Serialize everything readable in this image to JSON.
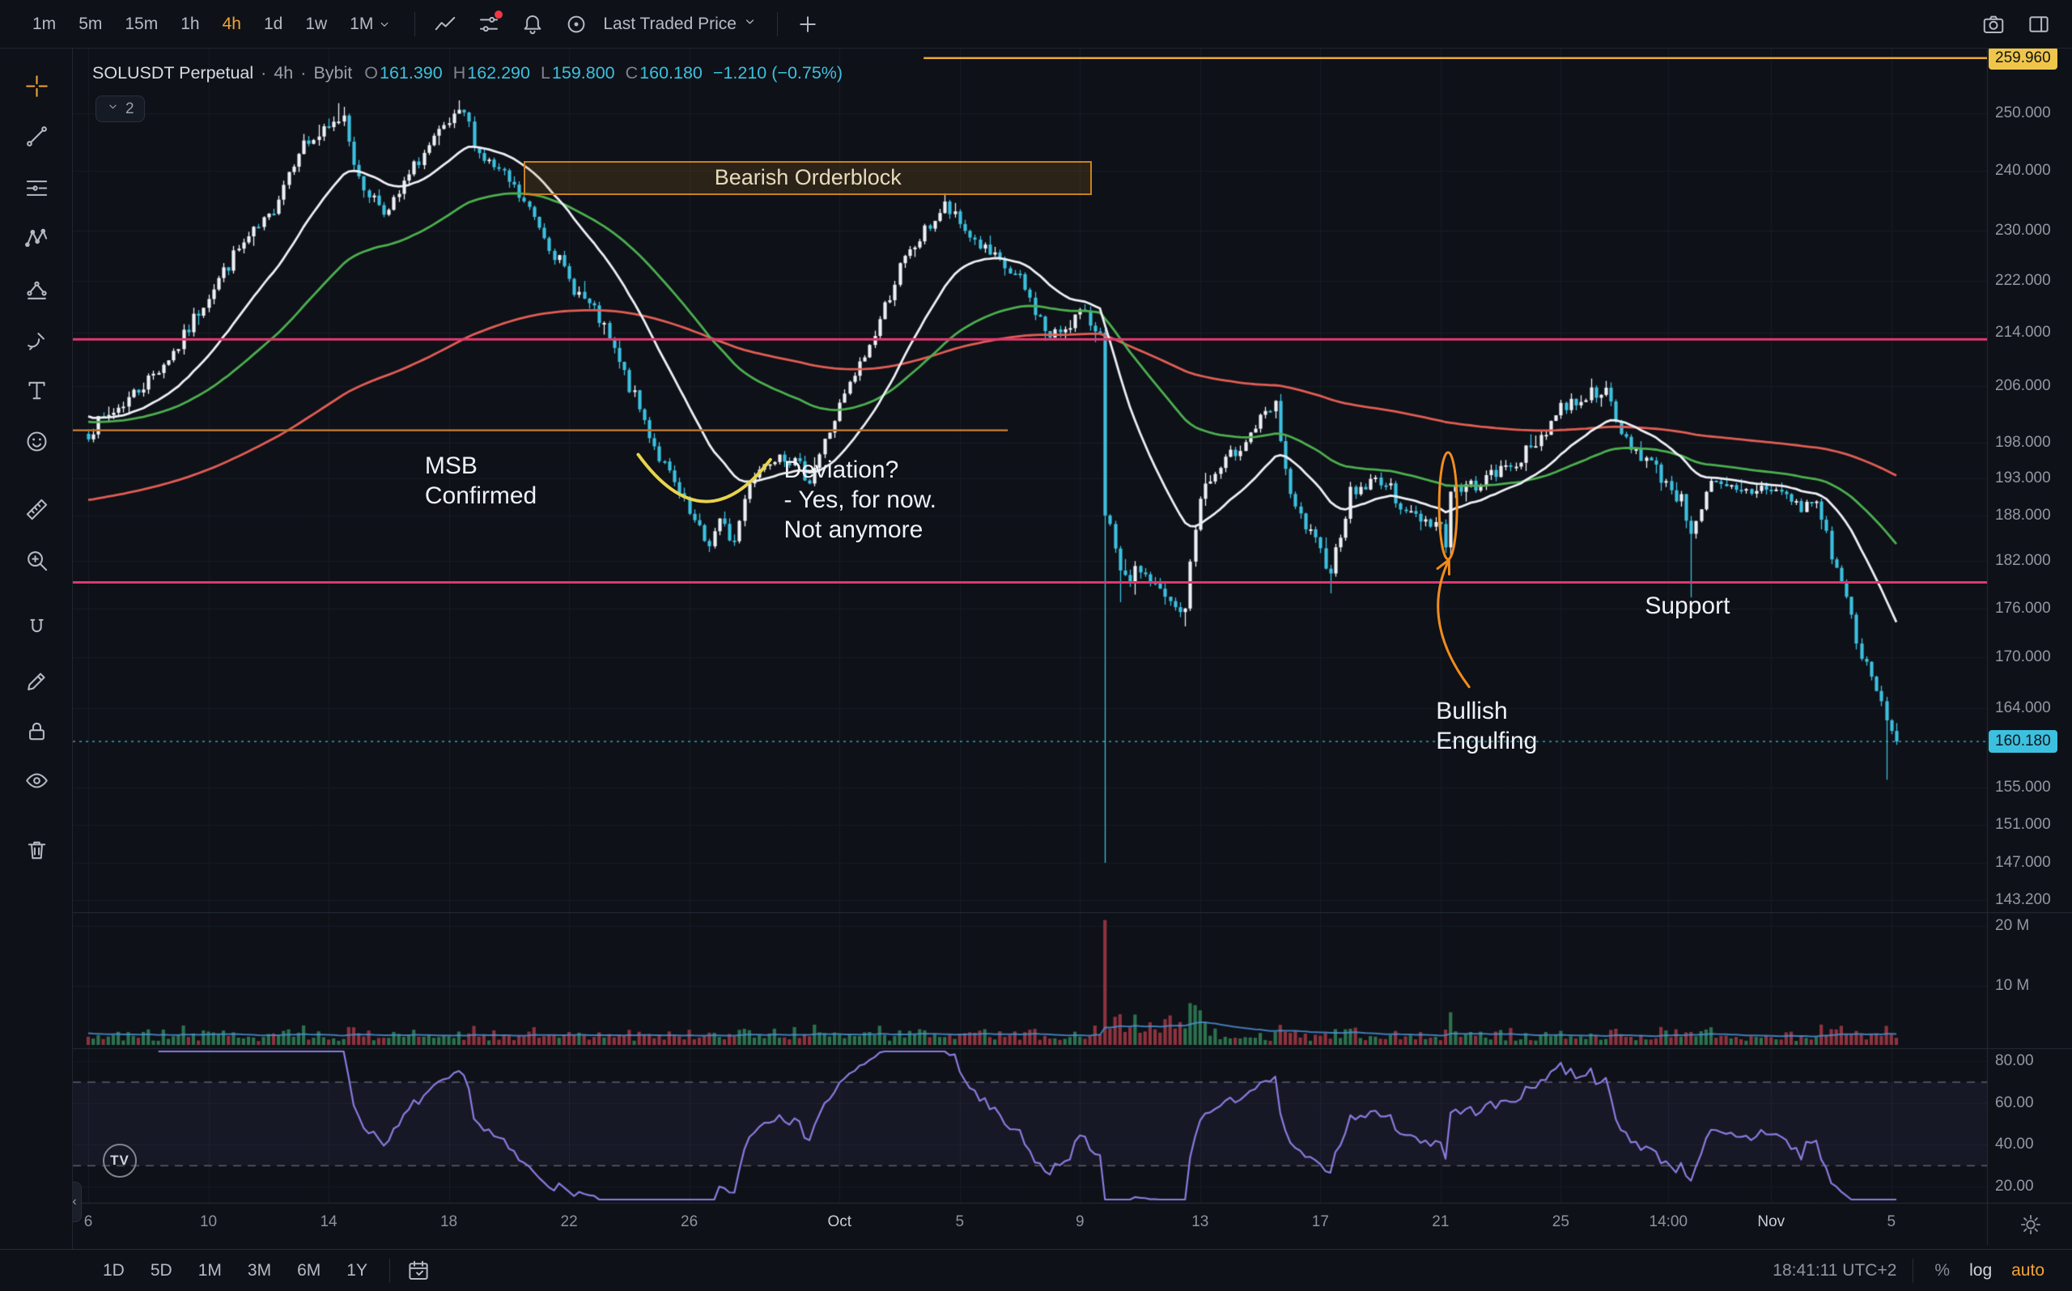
{
  "header": {
    "accent": "#f0a43a",
    "timeframes": [
      {
        "label": "1m"
      },
      {
        "label": "5m"
      },
      {
        "label": "15m"
      },
      {
        "label": "1h"
      },
      {
        "label": "4h",
        "active": true
      },
      {
        "label": "1d"
      },
      {
        "label": "1w"
      },
      {
        "label": "1M",
        "caret": true
      }
    ],
    "icons": [
      {
        "name": "chart-style-icon"
      },
      {
        "name": "indicators-icon",
        "badge": true
      },
      {
        "name": "alerts-icon"
      },
      {
        "name": "target-icon"
      }
    ],
    "price_source": "Last Traded Price",
    "add_icon": "plus-icon",
    "right_icons": [
      {
        "name": "camera-icon"
      },
      {
        "name": "layout-icon"
      }
    ]
  },
  "symbol_bar": {
    "symbol": "SOLUSDT Perpetual",
    "separator": "·",
    "interval": "4h",
    "exchange": "Bybit",
    "ohlc": [
      {
        "label": "O",
        "value": "161.390"
      },
      {
        "label": "H",
        "value": "162.290"
      },
      {
        "label": "L",
        "value": "159.800"
      },
      {
        "label": "C",
        "value": "160.180"
      }
    ],
    "change": "−1.210 (−0.75%)",
    "objects_count": "2",
    "objects_chip_icon": "chevron-down-icon"
  },
  "left_toolbar": {
    "tools": [
      {
        "icon": "crosshair-icon",
        "active": true
      },
      {
        "icon": "trend-line-icon"
      },
      {
        "icon": "horizontal-lines-icon"
      },
      {
        "icon": "xabcd-pattern-icon"
      },
      {
        "icon": "patterns-icon"
      },
      {
        "icon": "brush-icon"
      },
      {
        "icon": "text-icon"
      },
      {
        "icon": "emoji-icon"
      },
      {
        "icon": "ruler-icon"
      },
      {
        "icon": "zoom-icon"
      },
      {
        "icon": "magnet-icon"
      },
      {
        "icon": "edit-lock-icon"
      },
      {
        "icon": "lock-all-icon"
      },
      {
        "icon": "hide-all-icon"
      },
      {
        "icon": "trash-icon"
      }
    ]
  },
  "bottom_toolbar": {
    "ranges": [
      "1D",
      "5D",
      "1M",
      "3M",
      "6M",
      "1Y"
    ],
    "calendar_icon": "go-to-date-icon",
    "clock": "18:41:11 UTC+2",
    "percent_label": "%",
    "log_label": "log",
    "auto_label": "auto"
  },
  "chart_data": {
    "type": "candlestick",
    "symbol": "SOLUSDT Perpetual",
    "interval": "4h",
    "exchange": "Bybit",
    "scale": "log",
    "watermark_logo": "TV",
    "collapse_tab_icon": "chevron-left-icon",
    "ohlc_current": {
      "open": 161.39,
      "high": 162.29,
      "low": 159.8,
      "close": 160.18,
      "change": -1.21,
      "change_pct": -0.75
    },
    "price_axis": {
      "ticks": [
        250,
        240,
        230,
        222,
        214,
        206,
        198,
        193,
        188,
        182,
        176,
        170,
        164,
        155,
        151,
        147,
        143.2
      ],
      "top_badge": {
        "value": 259.96,
        "label": "259.960",
        "color": "#f0c64a"
      },
      "last_badge": {
        "value": 160.18,
        "label": "160.180"
      }
    },
    "time_axis": {
      "ticks": [
        {
          "t": 0,
          "label": "6"
        },
        {
          "t": 4,
          "label": "10"
        },
        {
          "t": 8,
          "label": "14"
        },
        {
          "t": 12,
          "label": "18"
        },
        {
          "t": 16,
          "label": "22"
        },
        {
          "t": 20,
          "label": "26"
        },
        {
          "t": 25,
          "label": "Oct",
          "major": true
        },
        {
          "t": 29,
          "label": "5"
        },
        {
          "t": 33,
          "label": "9"
        },
        {
          "t": 37,
          "label": "13"
        },
        {
          "t": 41,
          "label": "17"
        },
        {
          "t": 45,
          "label": "21"
        },
        {
          "t": 49,
          "label": "25"
        },
        {
          "t": 52.58,
          "label": "14:00"
        },
        {
          "t": 56,
          "label": "Nov",
          "major": true
        },
        {
          "t": 60,
          "label": "5"
        }
      ],
      "corner_icon": "pane-settings-icon"
    },
    "volume_axis": {
      "ticks": [
        {
          "v": 20,
          "label": "20 M"
        },
        {
          "v": 10,
          "label": "10 M"
        }
      ]
    },
    "rsi": {
      "ticks": [
        {
          "v": 80,
          "label": "80.00"
        },
        {
          "v": 60,
          "label": "60.00"
        },
        {
          "v": 40,
          "label": "40.00"
        },
        {
          "v": 20,
          "label": "20.00"
        }
      ],
      "upper": 70,
      "lower": 30
    },
    "close_waypoints": [
      [
        0,
        199.5
      ],
      [
        1,
        203
      ],
      [
        2,
        207
      ],
      [
        3,
        212
      ],
      [
        4,
        220
      ],
      [
        5,
        227
      ],
      [
        6,
        232
      ],
      [
        7,
        244
      ],
      [
        8,
        247
      ],
      [
        8.5,
        250
      ],
      [
        9,
        238
      ],
      [
        10,
        233
      ],
      [
        11,
        242
      ],
      [
        12,
        248
      ],
      [
        12.5,
        250
      ],
      [
        13,
        243
      ],
      [
        14,
        238
      ],
      [
        15,
        231
      ],
      [
        16,
        222
      ],
      [
        17,
        216
      ],
      [
        18,
        206
      ],
      [
        19,
        196
      ],
      [
        20,
        188
      ],
      [
        20.6,
        184
      ],
      [
        21,
        187
      ],
      [
        21.5,
        184.5
      ],
      [
        22,
        193
      ],
      [
        23,
        197
      ],
      [
        24,
        193
      ],
      [
        25,
        203
      ],
      [
        26,
        212
      ],
      [
        27,
        224
      ],
      [
        28,
        231
      ],
      [
        28.5,
        234
      ],
      [
        29,
        231
      ],
      [
        30,
        226
      ],
      [
        31,
        222
      ],
      [
        32,
        213
      ],
      [
        33,
        217
      ],
      [
        33.67,
        214
      ],
      [
        33.84,
        188
      ],
      [
        34,
        186
      ],
      [
        34.4,
        179
      ],
      [
        35,
        181
      ],
      [
        36,
        176.5
      ],
      [
        36.45,
        175
      ],
      [
        37,
        191
      ],
      [
        38,
        196
      ],
      [
        39,
        201
      ],
      [
        39.5,
        203
      ],
      [
        40,
        190
      ],
      [
        41,
        183
      ],
      [
        41.35,
        181
      ],
      [
        42,
        191
      ],
      [
        43,
        193
      ],
      [
        44,
        188
      ],
      [
        45,
        187
      ],
      [
        45.17,
        183.8
      ],
      [
        45.34,
        191.2
      ],
      [
        46,
        192
      ],
      [
        47,
        194
      ],
      [
        48,
        197
      ],
      [
        49,
        203
      ],
      [
        50,
        205
      ],
      [
        50.4,
        206
      ],
      [
        51,
        199
      ],
      [
        52,
        195
      ],
      [
        53,
        190
      ],
      [
        53.3,
        186
      ],
      [
        54,
        192
      ],
      [
        55,
        191
      ],
      [
        56,
        192
      ],
      [
        57,
        189
      ],
      [
        57.5,
        190
      ],
      [
        58,
        183
      ],
      [
        58.6,
        176
      ],
      [
        59,
        170
      ],
      [
        59.5,
        166
      ],
      [
        60,
        161.4
      ],
      [
        60.17,
        160.18
      ]
    ],
    "anomalies": [
      {
        "t": 8.4,
        "high": 251.8
      },
      {
        "t": 12.4,
        "high": 252.3
      },
      {
        "t": 20.6,
        "low": 183.2
      },
      {
        "t": 21.5,
        "low": 184.0
      },
      {
        "t": 28.5,
        "high": 236.2
      },
      {
        "t": 33.67,
        "close": 214.0
      },
      {
        "t": 33.84,
        "close": 188.0,
        "low": 147.0,
        "volume_m": 21
      },
      {
        "t": 34.4,
        "low": 176.8
      },
      {
        "t": 36.45,
        "low": 173.8
      },
      {
        "t": 41.35,
        "low": 177.9
      },
      {
        "t": 45.17,
        "close": 183.8
      },
      {
        "t": 45.34,
        "close": 191.2,
        "low": 182.5,
        "volume_m": 5.5
      },
      {
        "t": 53.3,
        "low": 177.4
      },
      {
        "t": 59.8,
        "low": 155.9
      },
      {
        "t": 60.0,
        "close": 161.39
      },
      {
        "t": 60.17,
        "open": 161.39,
        "high": 162.29,
        "low": 159.8,
        "close": 160.18
      }
    ],
    "levels": [
      {
        "name": "upper-range-line",
        "price": 259.96,
        "t1": 27.8,
        "t2": "end",
        "color": "#e8a83d",
        "width": 2.5
      },
      {
        "name": "resistance-line",
        "price": 213.0,
        "t1": "start",
        "t2": "end",
        "color": "#e0366e",
        "width": 3
      },
      {
        "name": "support-line",
        "price": 179.3,
        "t1": "start",
        "t2": "end",
        "color": "#e0366e",
        "width": 3
      },
      {
        "name": "msb-level-line",
        "price": 199.7,
        "t1": "start",
        "t2": 30.6,
        "color": "#b8722d",
        "width": 2.5
      }
    ],
    "annotations": {
      "orderblock": {
        "label": "Bearish Orderblock",
        "t1": 14.5,
        "t2": 33.4,
        "p_top": 241.7,
        "p_bottom": 235.9,
        "color": "#c8811f"
      },
      "msb": {
        "text": "MSB\nConfirmed",
        "t": 11.2,
        "p": 196.8
      },
      "deviation": {
        "text": "Deviation?\n- Yes, for now.\nNot anymore",
        "t": 23.15,
        "p": 196.2
      },
      "support": {
        "text": "Support",
        "t": 51.8,
        "p": 178.2
      },
      "bullish": {
        "text": "Bullish\nEngulfing",
        "t": 44.85,
        "p": 165.4
      },
      "arc": {
        "t1": 18.3,
        "p1": 196.3,
        "tc": 20.5,
        "pc": 184.0,
        "t2": 22.7,
        "p2": 195.6,
        "color": "#e8d44d"
      },
      "ellipse": {
        "t": 45.25,
        "p": 189.3,
        "rx": 11,
        "ry": 66,
        "color": "#f28c1e"
      },
      "arrow": {
        "t1": 45.95,
        "p1": 166.5,
        "tc": 44.3,
        "pc": 174.5,
        "t2": 45.28,
        "p2": 182.2,
        "color": "#f28c1e"
      }
    },
    "colors": {
      "up": "#edf1f5",
      "down": "#3cc0e0",
      "vol_up": "rgba(46,120,82,0.95)",
      "vol_down": "rgba(150,54,64,0.95)",
      "ma_fast": "#eceff4",
      "ma_mid": "#4caf50",
      "ma_slow": "#e25d55",
      "rsi": "#8a7be0",
      "volume_ma": "rgba(74,143,212,0.85)",
      "grid": "#171c26",
      "pane_sep": "#272d39",
      "last_line": "#3cc0e0"
    }
  }
}
